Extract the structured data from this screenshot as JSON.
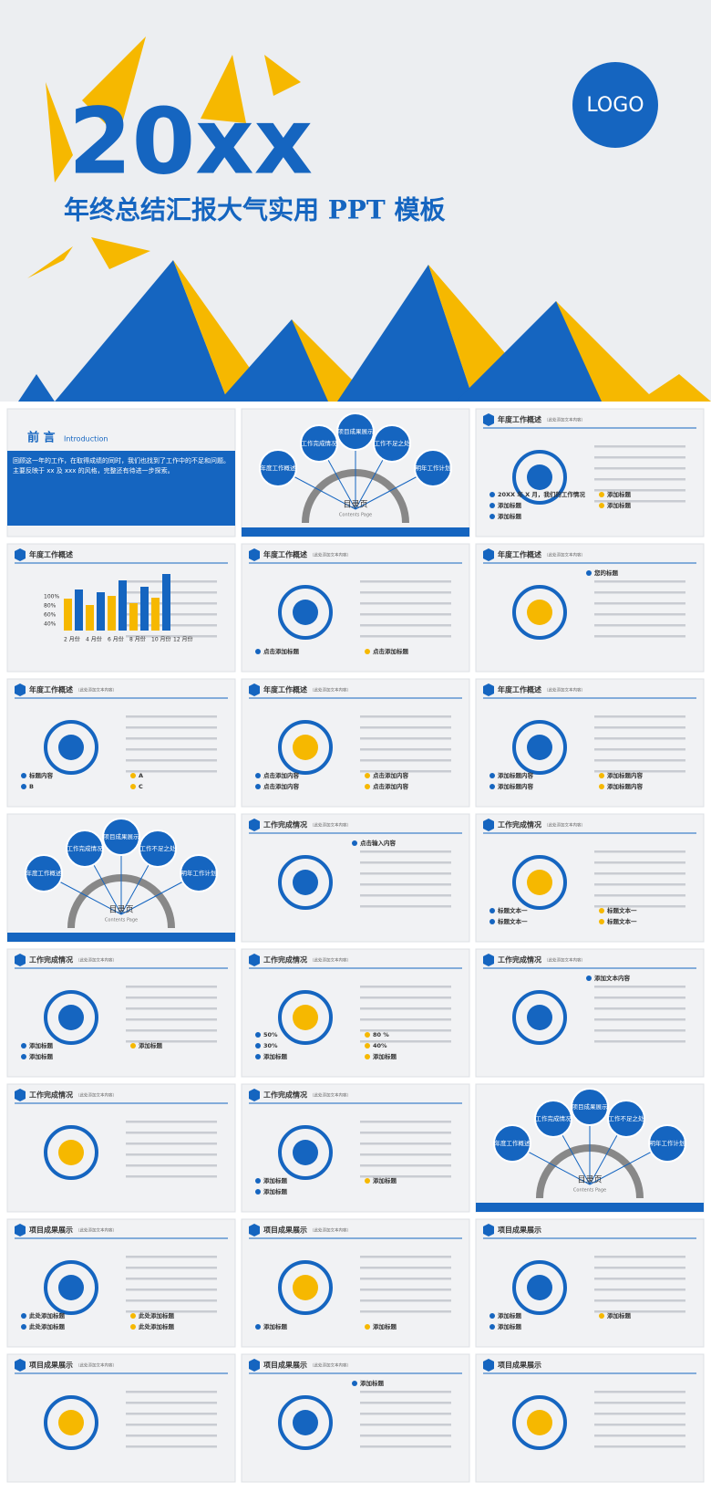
{
  "header": {
    "title": "20xx",
    "subtitle": "年终总结汇报大气实用 PPT 模板",
    "logo": "LOGO"
  },
  "slides": [
    {
      "title": "前 言",
      "sub": "Introduction",
      "texts": [
        "回顾这一年的工作，在取得成绩的同时，我们也找到了工作中的不足和问题。主要反映于 xx 及 xxx 的风格，完整还有待进一步探索。"
      ]
    },
    {
      "texts": [
        "年度工作概述",
        "工作完成情况",
        "项目成果展示",
        "工作不足之处",
        "明年工作计划",
        "目录页",
        "Contents Page"
      ]
    },
    {
      "title": "年度工作概述",
      "sub": "（此处添加文本内容）",
      "texts": [
        "20XX 年 X 月，我们的工作情况",
        "添加标题",
        "添加标题",
        "添加标题",
        "添加标题"
      ]
    },
    {
      "title": "年度工作概述",
      "texts": [
        "100%",
        "80%",
        "60%",
        "40%",
        "2 月份",
        "4 月份",
        "6 月份",
        "8 月份",
        "10 月份",
        "12 月份"
      ]
    },
    {
      "title": "年度工作概述",
      "sub": "（此处添加文本内容）",
      "texts": [
        "点击添加标题",
        "点击添加标题"
      ]
    },
    {
      "title": "年度工作概述",
      "sub": "（此处添加文本内容）",
      "texts": [
        "您的标题"
      ]
    },
    {
      "title": "年度工作概述",
      "sub": "（此处添加文本内容）",
      "texts": [
        "标题内容",
        "A",
        "B",
        "C"
      ]
    },
    {
      "title": "年度工作概述",
      "sub": "（此处添加文本内容）",
      "texts": [
        "点击添加内容",
        "点击添加内容",
        "点击添加内容",
        "点击添加内容"
      ]
    },
    {
      "title": "年度工作概述",
      "sub": "（此处添加文本内容）",
      "texts": [
        "添加标题内容",
        "添加标题内容",
        "添加标题内容",
        "添加标题内容"
      ]
    },
    {
      "texts": [
        "年度工作概述",
        "工作完成情况",
        "项目成果展示",
        "工作不足之处",
        "明年工作计划",
        "目录页",
        "Contents Page"
      ]
    },
    {
      "title": "工作完成情况",
      "sub": "（此处添加文本内容）",
      "texts": [
        "点击输入内容"
      ]
    },
    {
      "title": "工作完成情况",
      "sub": "（此处添加文本内容）",
      "texts": [
        "标题文本一",
        "标题文本一",
        "标题文本一",
        "标题文本一"
      ]
    },
    {
      "title": "工作完成情况",
      "sub": "（此处添加文本内容）",
      "texts": [
        "添加标题",
        "添加标题",
        "添加标题"
      ]
    },
    {
      "title": "工作完成情况",
      "sub": "（此处添加文本内容）",
      "texts": [
        "50%",
        "80 %",
        "30%",
        "40%",
        "添加标题",
        "添加标题"
      ]
    },
    {
      "title": "工作完成情况",
      "sub": "（此处添加文本内容）",
      "texts": [
        "添加文本内容"
      ]
    },
    {
      "title": "工作完成情况",
      "sub": "（此处添加文本内容）",
      "texts": []
    },
    {
      "title": "工作完成情况",
      "sub": "（此处添加文本内容）",
      "texts": [
        "添加标题",
        "添加标题",
        "添加标题"
      ]
    },
    {
      "texts": [
        "年度工作概述",
        "工作完成情况",
        "项目成果展示",
        "工作不足之处",
        "明年工作计划",
        "目录页",
        "Contents Page"
      ]
    },
    {
      "title": "项目成果展示",
      "sub": "（此处添加文本内容）",
      "texts": [
        "此处添加标题",
        "此处添加标题",
        "此处添加标题",
        "此处添加标题"
      ]
    },
    {
      "title": "项目成果展示",
      "sub": "（此处添加文本内容）",
      "texts": [
        "添加标题",
        "添加标题"
      ]
    },
    {
      "title": "项目成果展示",
      "texts": [
        "添加标题",
        "添加标题",
        "添加标题"
      ]
    },
    {
      "title": "项目成果展示",
      "sub": "（此处添加文本内容）",
      "texts": []
    },
    {
      "title": "项目成果展示",
      "sub": "（此处添加文本内容）",
      "texts": [
        "添加标题"
      ]
    },
    {
      "title": "项目成果展示",
      "texts": []
    }
  ]
}
